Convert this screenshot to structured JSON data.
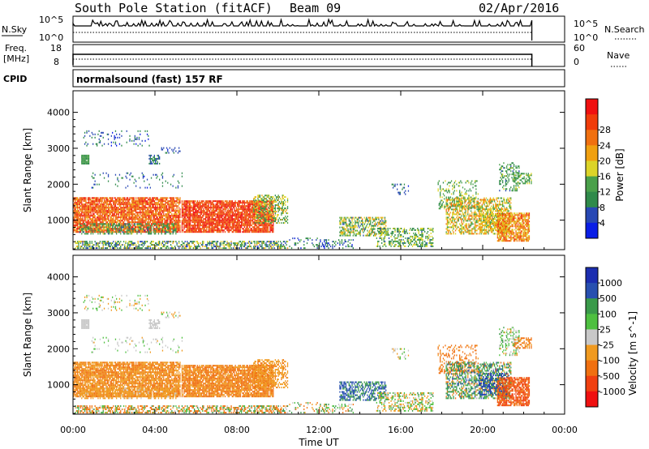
{
  "header": {
    "station": "South Pole Station (fitACF)",
    "beam": "Beam 09",
    "date": "02/Apr/2016",
    "mode": "normalsound (fast) 157 RF"
  },
  "panels_left": {
    "nsky_label": "N.Sky",
    "nsky_ticks": [
      "10^5",
      "10^0"
    ],
    "freq_label_1": "Freq.",
    "freq_label_2": "[MHz]",
    "freq_ticks": [
      "18",
      "8"
    ],
    "cpid_label": "CPID"
  },
  "panels_right": {
    "nsearch_label": "N.Search",
    "nsearch_ticks": [
      "10^5",
      "10^0"
    ],
    "nave_label": "Nave",
    "nave_ticks": [
      "60",
      "0"
    ]
  },
  "colors": {
    "power": [
      "#0a1ee6",
      "#2848b4",
      "#2f8a4a",
      "#4aa04a",
      "#dcd428",
      "#f0a010",
      "#f07010",
      "#f03c0a",
      "#f01010"
    ],
    "velocity": [
      "#f01010",
      "#f04010",
      "#f07010",
      "#f09a20",
      "#c8c8c8",
      "#4ec040",
      "#3a9a4a",
      "#2850b0",
      "#1c2eb0"
    ]
  },
  "chart_data": [
    {
      "type": "heatmap",
      "name": "power",
      "ylabel": "Slant Range [km]",
      "xlabel": "",
      "x_ticks": [
        "00:00",
        "04:00",
        "08:00",
        "12:00",
        "16:00",
        "20:00",
        "00:00"
      ],
      "x_range_hours": [
        0,
        24
      ],
      "y_ticks": [
        "1000",
        "2000",
        "3000",
        "4000"
      ],
      "y_range_km": [
        180,
        4600
      ],
      "colorbar_label": "Power [dB]",
      "colorbar_ticks": [
        "4",
        "8",
        "12",
        "16",
        "20",
        "24",
        "28"
      ]
    },
    {
      "type": "heatmap",
      "name": "velocity",
      "ylabel": "Slant Range [km]",
      "xlabel": "Time UT",
      "x_ticks": [
        "00:00",
        "04:00",
        "08:00",
        "12:00",
        "16:00",
        "20:00",
        "00:00"
      ],
      "x_range_hours": [
        0,
        24
      ],
      "y_ticks": [
        "1000",
        "2000",
        "3000",
        "4000"
      ],
      "y_range_km": [
        180,
        4600
      ],
      "colorbar_label": "Velocity [m s^-1]",
      "colorbar_ticks": [
        "1000",
        "500",
        "100",
        "25",
        "-25",
        "-100",
        "-500",
        "-1000"
      ]
    }
  ]
}
